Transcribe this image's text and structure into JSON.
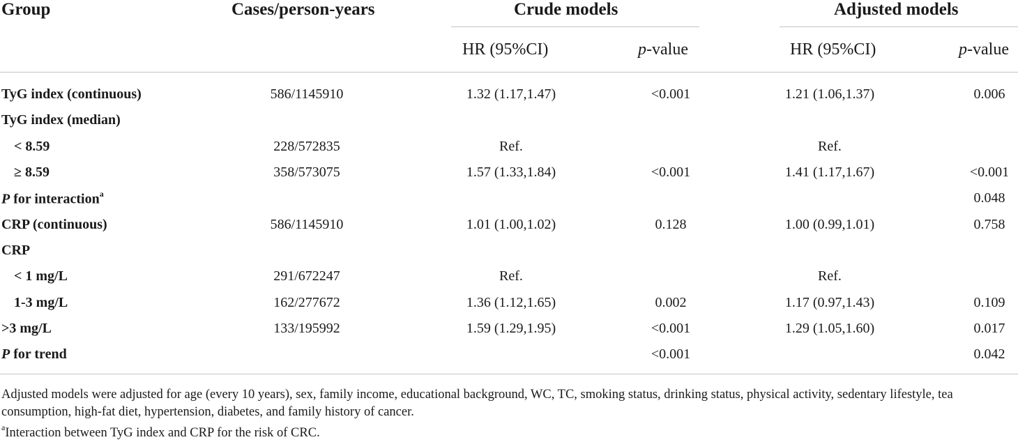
{
  "headers": {
    "group": "Group",
    "cases": "Cases/person-years",
    "crude": "Crude models",
    "adjusted": "Adjusted models",
    "hr": "HR (95%CI)",
    "p_italic": "p",
    "p_suffix": "-value"
  },
  "rows": [
    {
      "label": "TyG index (continuous)",
      "cases": "586/1145910",
      "crude_hr": "1.32 (1.17,1.47)",
      "crude_p": "<0.001",
      "adj_hr": "1.21 (1.06,1.37)",
      "adj_p": "0.006"
    },
    {
      "label": "TyG index (median)",
      "cases": "",
      "crude_hr": "",
      "crude_p": "",
      "adj_hr": "",
      "adj_p": ""
    },
    {
      "label": "< 8.59",
      "cases": "228/572835",
      "crude_hr": "Ref.",
      "crude_p": "",
      "adj_hr": "Ref.",
      "adj_p": ""
    },
    {
      "label": "≥ 8.59",
      "cases": "358/573075",
      "crude_hr": "1.57 (1.33,1.84)",
      "crude_p": "<0.001",
      "adj_hr": "1.41 (1.17,1.67)",
      "adj_p": "<0.001"
    },
    {
      "label_italic": "P",
      "label": " for interaction",
      "label_sup": "a",
      "cases": "",
      "crude_hr": "",
      "crude_p": "",
      "adj_hr": "",
      "adj_p": "0.048"
    },
    {
      "label": "CRP (continuous)",
      "cases": "586/1145910",
      "crude_hr": "1.01 (1.00,1.02)",
      "crude_p": "0.128",
      "adj_hr": "1.00 (0.99,1.01)",
      "adj_p": "0.758"
    },
    {
      "label": "CRP",
      "cases": "",
      "crude_hr": "",
      "crude_p": "",
      "adj_hr": "",
      "adj_p": ""
    },
    {
      "label": "< 1 mg/L",
      "cases": "291/672247",
      "crude_hr": "Ref.",
      "crude_p": "",
      "adj_hr": "Ref.",
      "adj_p": ""
    },
    {
      "label": "1-3 mg/L",
      "cases": "162/277672",
      "crude_hr": "1.36 (1.12,1.65)",
      "crude_p": "0.002",
      "adj_hr": "1.17 (0.97,1.43)",
      "adj_p": "0.109"
    },
    {
      "label": ">3 mg/L",
      "cases": "133/195992",
      "crude_hr": "1.59 (1.29,1.95)",
      "crude_p": "<0.001",
      "adj_hr": "1.29 (1.05,1.60)",
      "adj_p": "0.017"
    },
    {
      "label_italic": "P",
      "label": " for trend",
      "cases": "",
      "crude_hr": "",
      "crude_p": "<0.001",
      "adj_hr": "",
      "adj_p": "0.042"
    }
  ],
  "footnotes": {
    "adjusted": "Adjusted models were adjusted for age (every 10 years), sex, family income, educational background, WC, TC, smoking status, drinking status, physical activity, sedentary lifestyle, tea consumption, high-fat diet, hypertension, diabetes, and family history of cancer.",
    "interaction_sup": "a",
    "interaction": "Interaction between TyG index and CRP for the risk of CRC."
  }
}
